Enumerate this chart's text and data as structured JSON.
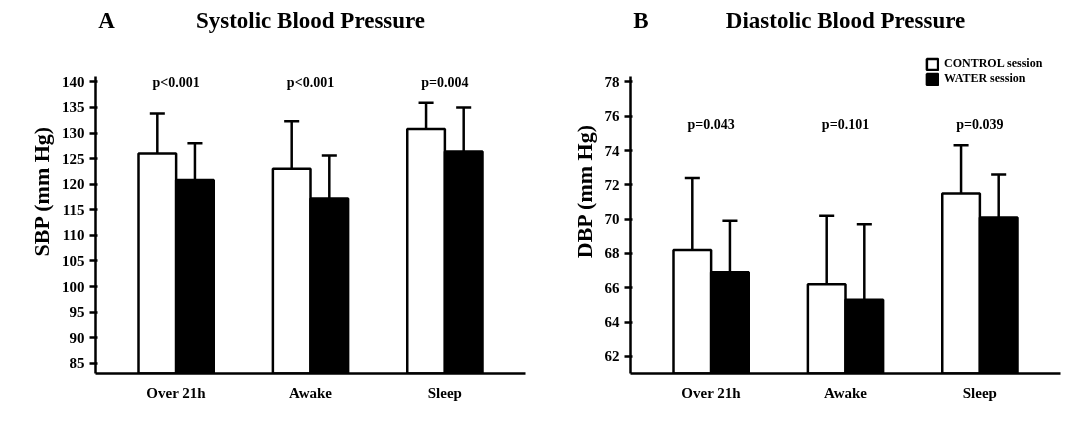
{
  "chart_data": [
    {
      "type": "bar",
      "title": "Systolic Blood Pressure",
      "ylabel": "SBP (mm Hg)",
      "categories": [
        "Over 21h",
        "Awake",
        "Sleep"
      ],
      "series": [
        {
          "color": "#ffffff",
          "values": [
            126,
            123,
            130.8
          ],
          "errors": [
            [
              126,
              133.8
            ],
            [
              123,
              132.3
            ],
            [
              130.8,
              135.9
            ]
          ]
        },
        {
          "color": "#000000",
          "values": [
            120.8,
            117.2,
            126.4
          ],
          "errors": [
            [
              120.8,
              128
            ],
            [
              117.2,
              125.6
            ],
            [
              126.4,
              135
            ]
          ]
        }
      ],
      "ylim": [
        83,
        141
      ],
      "yticks": [
        85,
        90,
        95,
        100,
        105,
        110,
        115,
        120,
        125,
        130,
        135,
        140
      ],
      "grid": false,
      "annotations": [
        "A",
        "p<0.001",
        "p<0.001",
        "p=0.004"
      ]
    },
    {
      "type": "bar",
      "title": "Diastolic Blood Pressure",
      "ylabel": "DBP (mm Hg)",
      "categories": [
        "Over 21h",
        "Awake",
        "Sleep"
      ],
      "series": [
        {
          "name": "CONTROL session",
          "color": "#ffffff",
          "values": [
            68.2,
            66.2,
            71.5
          ],
          "errors": [
            [
              68.2,
              72.4
            ],
            [
              66.2,
              70.2
            ],
            [
              71.5,
              74.3
            ]
          ]
        },
        {
          "name": "WATER session",
          "color": "#000000",
          "values": [
            66.9,
            65.3,
            70.1
          ],
          "errors": [
            [
              66.9,
              69.9
            ],
            [
              65.3,
              69.7
            ],
            [
              70.1,
              72.6
            ]
          ]
        }
      ],
      "ylim": [
        61,
        78.3
      ],
      "yticks": [
        62,
        64,
        66,
        68,
        70,
        72,
        74,
        76,
        78
      ],
      "grid": false,
      "legend": "top right",
      "annotations": [
        "B",
        "p=0.043",
        "p=0.101",
        "p=0.039"
      ]
    }
  ]
}
